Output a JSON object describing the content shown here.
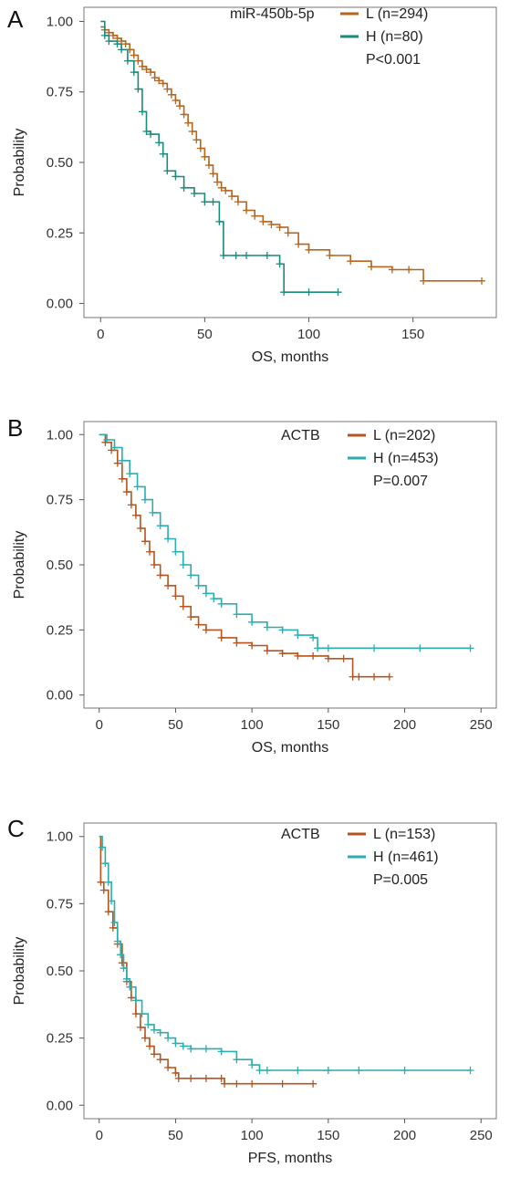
{
  "chart_data": [
    {
      "type": "line",
      "panel_label": "A",
      "xlabel": "OS, months",
      "ylabel": "Probability",
      "xlim": [
        -8,
        190
      ],
      "ylim": [
        -0.05,
        1.05
      ],
      "xticks": [
        0,
        50,
        100,
        150
      ],
      "yticks": [
        0.0,
        0.25,
        0.5,
        0.75,
        1.0
      ],
      "ytick_labels": [
        "0.00",
        "0.25",
        "0.50",
        "0.75",
        "1.00"
      ],
      "legend_title": "miR-450b-5p",
      "stat": "P<0.001",
      "series": [
        {
          "name": "L (n=294)",
          "color": "#b5651d",
          "x": [
            0,
            2,
            4,
            6,
            8,
            10,
            12,
            14,
            16,
            18,
            20,
            22,
            24,
            26,
            28,
            30,
            32,
            34,
            36,
            38,
            40,
            42,
            44,
            46,
            48,
            50,
            52,
            54,
            56,
            58,
            60,
            63,
            66,
            70,
            74,
            78,
            82,
            86,
            90,
            95,
            100,
            110,
            120,
            130,
            140,
            148,
            155,
            183
          ],
          "y": [
            0.98,
            0.97,
            0.96,
            0.95,
            0.94,
            0.93,
            0.92,
            0.9,
            0.88,
            0.86,
            0.84,
            0.83,
            0.82,
            0.8,
            0.79,
            0.78,
            0.76,
            0.74,
            0.72,
            0.7,
            0.67,
            0.64,
            0.61,
            0.58,
            0.55,
            0.52,
            0.49,
            0.46,
            0.43,
            0.41,
            0.4,
            0.38,
            0.36,
            0.33,
            0.31,
            0.29,
            0.28,
            0.27,
            0.25,
            0.21,
            0.19,
            0.17,
            0.15,
            0.13,
            0.12,
            0.12,
            0.08,
            0.08
          ]
        },
        {
          "name": "H (n=80)",
          "color": "#1a8a7a",
          "x": [
            0,
            2,
            4,
            8,
            10,
            13,
            16,
            18,
            20,
            22,
            24,
            28,
            30,
            32,
            36,
            40,
            45,
            50,
            54,
            57,
            59,
            65,
            70,
            80,
            86,
            88,
            100,
            114
          ],
          "y": [
            1.0,
            0.95,
            0.93,
            0.92,
            0.9,
            0.86,
            0.82,
            0.76,
            0.68,
            0.61,
            0.6,
            0.57,
            0.53,
            0.47,
            0.45,
            0.41,
            0.39,
            0.36,
            0.36,
            0.29,
            0.17,
            0.17,
            0.17,
            0.17,
            0.14,
            0.04,
            0.04,
            0.04
          ]
        }
      ]
    },
    {
      "type": "line",
      "panel_label": "B",
      "xlabel": "OS, months",
      "ylabel": "Probability",
      "xlim": [
        -10,
        260
      ],
      "ylim": [
        -0.05,
        1.05
      ],
      "xticks": [
        0,
        50,
        100,
        150,
        200,
        250
      ],
      "yticks": [
        0.0,
        0.25,
        0.5,
        0.75,
        1.0
      ],
      "ytick_labels": [
        "0.00",
        "0.25",
        "0.50",
        "0.75",
        "1.00"
      ],
      "legend_title": "ACTB",
      "stat": "P=0.007",
      "series": [
        {
          "name": "L (n=202)",
          "color": "#b5541d",
          "x": [
            0,
            4,
            8,
            12,
            15,
            18,
            21,
            24,
            27,
            30,
            33,
            36,
            40,
            45,
            50,
            55,
            60,
            65,
            70,
            80,
            90,
            100,
            110,
            120,
            130,
            140,
            150,
            160,
            166,
            170,
            180,
            190
          ],
          "y": [
            1.0,
            0.97,
            0.94,
            0.89,
            0.83,
            0.78,
            0.73,
            0.69,
            0.64,
            0.59,
            0.55,
            0.5,
            0.46,
            0.42,
            0.38,
            0.34,
            0.3,
            0.27,
            0.25,
            0.22,
            0.2,
            0.19,
            0.17,
            0.16,
            0.15,
            0.15,
            0.14,
            0.14,
            0.07,
            0.07,
            0.07,
            0.07
          ]
        },
        {
          "name": "H (n=453)",
          "color": "#2aaeb0",
          "x": [
            0,
            5,
            10,
            15,
            20,
            25,
            30,
            35,
            40,
            45,
            50,
            55,
            60,
            65,
            70,
            75,
            80,
            90,
            100,
            110,
            120,
            130,
            140,
            143,
            150,
            180,
            210,
            243
          ],
          "y": [
            1.0,
            0.98,
            0.95,
            0.9,
            0.85,
            0.8,
            0.75,
            0.7,
            0.65,
            0.6,
            0.55,
            0.5,
            0.46,
            0.42,
            0.39,
            0.37,
            0.35,
            0.31,
            0.28,
            0.26,
            0.25,
            0.23,
            0.22,
            0.18,
            0.18,
            0.18,
            0.18,
            0.18
          ]
        }
      ]
    },
    {
      "type": "line",
      "panel_label": "C",
      "xlabel": "PFS, months",
      "ylabel": "Probability",
      "xlim": [
        -10,
        260
      ],
      "ylim": [
        -0.05,
        1.05
      ],
      "xticks": [
        0,
        50,
        100,
        150,
        200,
        250
      ],
      "yticks": [
        0.0,
        0.25,
        0.5,
        0.75,
        1.0
      ],
      "ytick_labels": [
        "0.00",
        "0.25",
        "0.50",
        "0.75",
        "1.00"
      ],
      "legend_title": "ACTB",
      "stat": "P=0.005",
      "series": [
        {
          "name": "L (n=153)",
          "color": "#b5541d",
          "x": [
            0,
            1,
            3,
            6,
            9,
            12,
            15,
            18,
            21,
            24,
            27,
            30,
            33,
            36,
            40,
            45,
            50,
            52,
            60,
            70,
            80,
            82,
            90,
            100,
            120,
            140
          ],
          "y": [
            1.0,
            0.83,
            0.8,
            0.72,
            0.66,
            0.6,
            0.53,
            0.46,
            0.4,
            0.34,
            0.29,
            0.25,
            0.22,
            0.19,
            0.17,
            0.14,
            0.12,
            0.1,
            0.1,
            0.1,
            0.1,
            0.08,
            0.08,
            0.08,
            0.08,
            0.08
          ]
        },
        {
          "name": "H (n=461)",
          "color": "#2aaeb0",
          "x": [
            0,
            2,
            4,
            6,
            8,
            10,
            12,
            14,
            16,
            18,
            20,
            24,
            28,
            32,
            36,
            40,
            45,
            50,
            55,
            60,
            70,
            80,
            90,
            100,
            105,
            110,
            130,
            150,
            170,
            200,
            243
          ],
          "y": [
            1.0,
            0.96,
            0.9,
            0.83,
            0.76,
            0.68,
            0.61,
            0.56,
            0.51,
            0.47,
            0.44,
            0.39,
            0.34,
            0.3,
            0.28,
            0.27,
            0.25,
            0.23,
            0.22,
            0.21,
            0.21,
            0.2,
            0.17,
            0.15,
            0.13,
            0.13,
            0.13,
            0.13,
            0.13,
            0.13,
            0.13
          ]
        }
      ]
    }
  ]
}
